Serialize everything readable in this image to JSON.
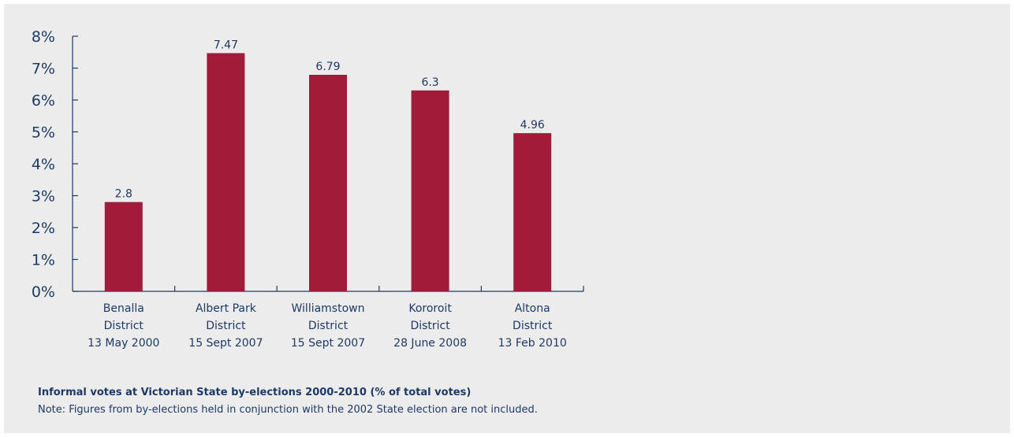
{
  "chart_data": {
    "type": "bar",
    "title": "Informal votes at Victorian State by-elections 2000-2010 (% of total votes)",
    "note": "Note: Figures from by-elections held in conjunction with the 2002 State election are not included.",
    "categories": [
      [
        "Benalla",
        "District",
        "13 May 2000"
      ],
      [
        "Albert Park",
        "District",
        "15 Sept 2007"
      ],
      [
        "Williamstown",
        "District",
        "15 Sept 2007"
      ],
      [
        "Kororoit",
        "District",
        "28 June 2008"
      ],
      [
        "Altona",
        "District",
        "13 Feb 2010"
      ]
    ],
    "values": [
      2.8,
      7.47,
      6.79,
      6.3,
      4.96
    ],
    "value_labels": [
      "2.8",
      "7.47",
      "6.79",
      "6.3",
      "4.96"
    ],
    "ylim": [
      0,
      8
    ],
    "yticks": [
      "0%",
      "1%",
      "2%",
      "3%",
      "4%",
      "5%",
      "6%",
      "7%",
      "8%"
    ],
    "grid": false,
    "bar_color": "#a01c38",
    "axis_color": "#1d3966"
  }
}
